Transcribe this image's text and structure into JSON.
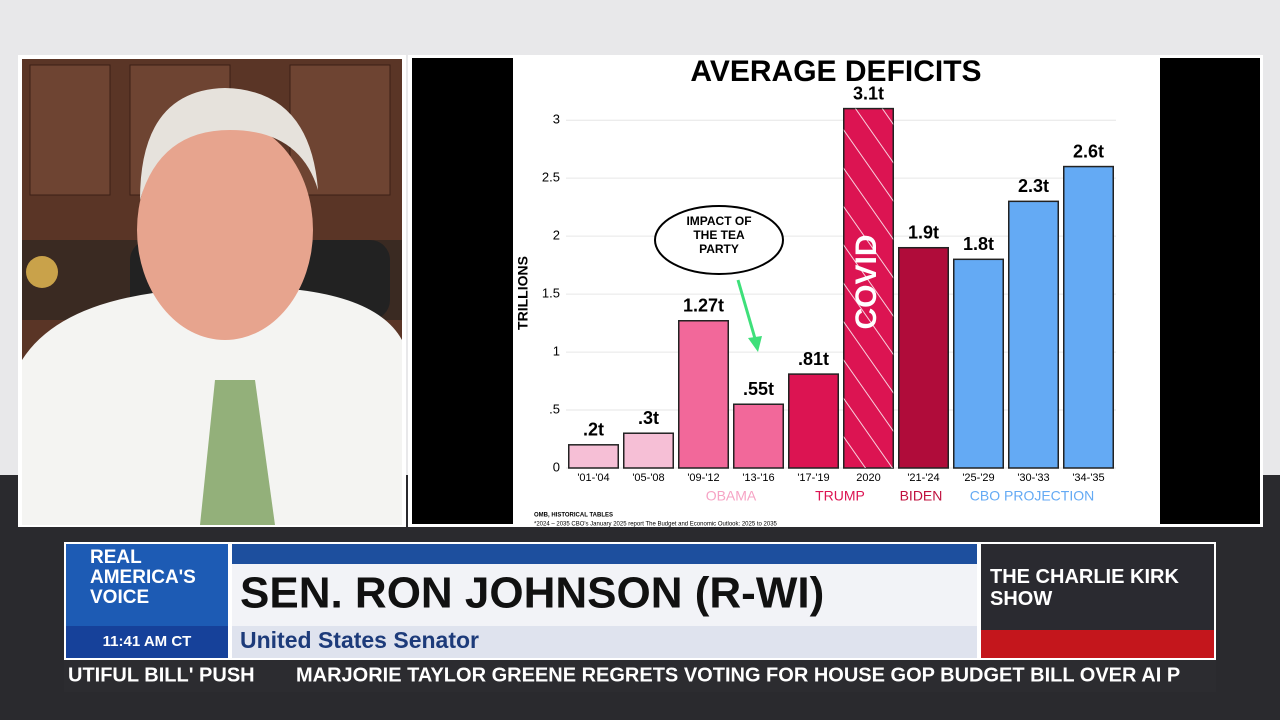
{
  "chart_data": {
    "type": "bar",
    "title": "AVERAGE DEFICITS",
    "y_label": "TRILLIONS",
    "categories": [
      "'01-'04",
      "'05-'08",
      "'09-'12",
      "'13-'16",
      "'17-'19",
      "2020",
      "'21-'24",
      "'25-'29",
      "'30-'33",
      "'34-'35"
    ],
    "values": [
      0.2,
      0.3,
      1.27,
      0.55,
      0.81,
      3.1,
      1.9,
      1.8,
      2.3,
      2.6
    ],
    "value_labels": [
      ".2t",
      ".3t",
      "1.27t",
      ".55t",
      ".81t",
      "3.1t",
      "1.9t",
      "1.8t",
      "2.3t",
      "2.6t"
    ],
    "colors": [
      "#f6bfd6",
      "#f6bfd6",
      "#f2689a",
      "#f2689a",
      "#dc1452",
      "#dc1452",
      "#b00c3a",
      "#64aaf4",
      "#64aaf4",
      "#64aaf4"
    ],
    "hatch": [
      false,
      false,
      false,
      false,
      false,
      true,
      false,
      false,
      false,
      false
    ],
    "ylim": [
      0,
      3.2
    ],
    "yticks": [
      0,
      {
        "value": 0.5,
        "label": ".5"
      },
      1,
      1.5,
      2,
      2.5,
      3
    ],
    "grid": true,
    "annotations": {
      "tea_party": "IMPACT OF THE TEA PARTY",
      "covid": "COVID",
      "source": "OMB, HISTORICAL TABLES",
      "footnote": "*2024 – 2035 CBO's January 2025 report The Budget and Economic Outlook: 2025 to 2035"
    },
    "groups": [
      "OBAMA",
      "TRUMP",
      "BIDEN",
      "CBO PROJECTION"
    ]
  },
  "lower_third": {
    "network": "REAL AMERICA'S VOICE",
    "time": "11:41 AM CT",
    "name": "SEN. RON JOHNSON (R-WI)",
    "role": "United States Senator",
    "show": "THE CHARLIE KIRK SHOW"
  },
  "ticker": [
    "UTIFUL BILL' PUSH",
    "MARJORIE TAYLOR GREENE REGRETS VOTING FOR HOUSE GOP BUDGET BILL OVER AI P"
  ]
}
